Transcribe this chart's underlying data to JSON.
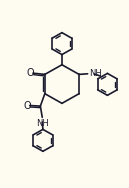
{
  "bg_color": "#FEFCF0",
  "line_color": "#1a1a2e",
  "line_width": 1.2,
  "figsize": [
    1.29,
    1.88
  ],
  "dpi": 100,
  "xlim": [
    0,
    10
  ],
  "ylim": [
    0,
    15
  ]
}
